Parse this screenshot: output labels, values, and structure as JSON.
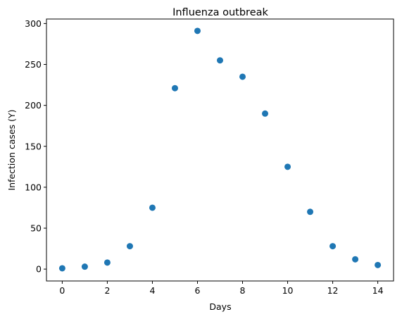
{
  "chart_data": {
    "type": "scatter",
    "title": "Influenza outbreak",
    "xlabel": "Days",
    "ylabel": "Infection cases (Y)",
    "x": [
      0,
      1,
      2,
      3,
      4,
      5,
      6,
      7,
      8,
      9,
      10,
      11,
      12,
      13,
      14
    ],
    "y": [
      1,
      3,
      8,
      28,
      75,
      221,
      291,
      255,
      235,
      190,
      125,
      70,
      28,
      12,
      5
    ],
    "xlim": [
      -0.7,
      14.7
    ],
    "ylim": [
      -14.5,
      305.5
    ],
    "xticks": [
      0,
      2,
      4,
      6,
      8,
      10,
      12,
      14
    ],
    "xtick_labels": [
      "0",
      "2",
      "4",
      "6",
      "8",
      "10",
      "12",
      "14"
    ],
    "yticks": [
      0,
      50,
      100,
      150,
      200,
      250,
      300
    ],
    "ytick_labels": [
      "0",
      "50",
      "100",
      "150",
      "200",
      "250",
      "300"
    ],
    "marker_color": "#1f77b4",
    "grid": false,
    "legend": "none"
  }
}
